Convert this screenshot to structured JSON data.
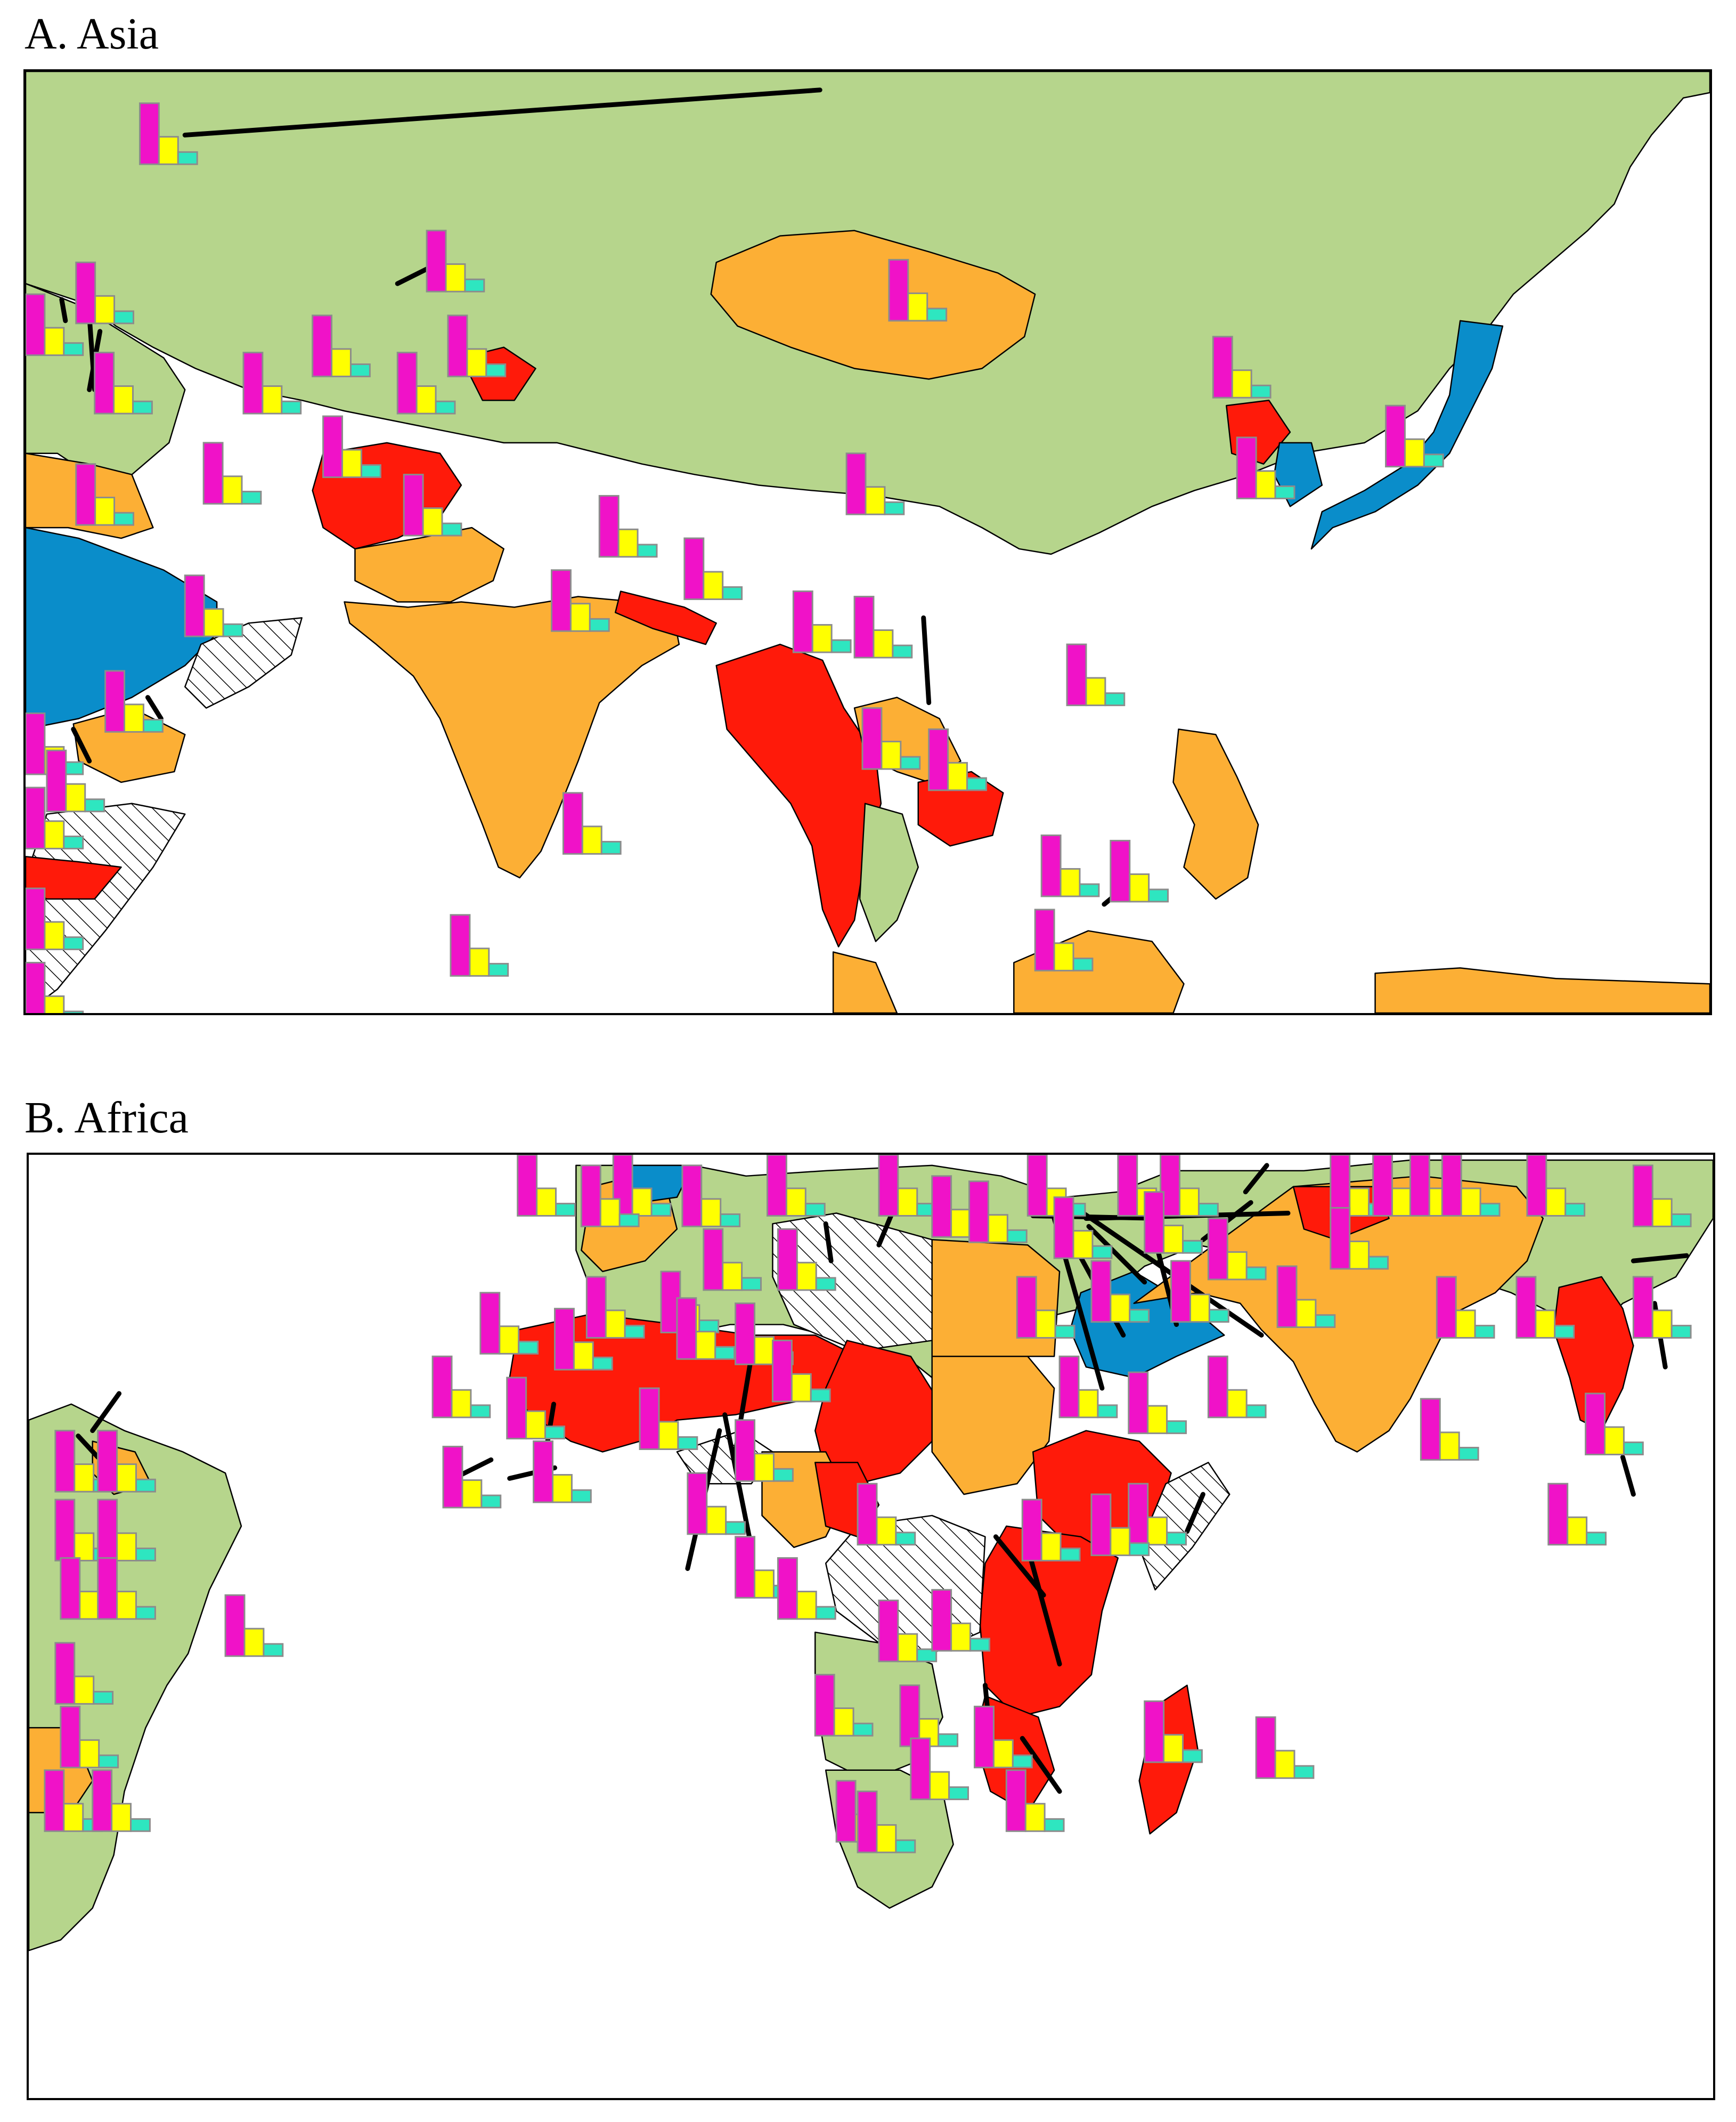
{
  "panels": {
    "a": {
      "title": "A. Asia"
    },
    "b": {
      "title": "B. Africa"
    }
  },
  "legend_colors": {
    "category_red": "#ff1a0a",
    "category_orange": "#fcaf35",
    "category_green": "#b6d58c",
    "category_blue": "#0a8dca",
    "no_data": "hatched",
    "bar_series_1": "#f012c8",
    "bar_series_2": "#ffff00",
    "bar_series_3": "#2ee6c0"
  },
  "bar_glyph_template": {
    "series": [
      "series-1",
      "series-2",
      "series-3"
    ],
    "relative_heights": [
      1.0,
      0.45,
      0.2
    ]
  }
}
